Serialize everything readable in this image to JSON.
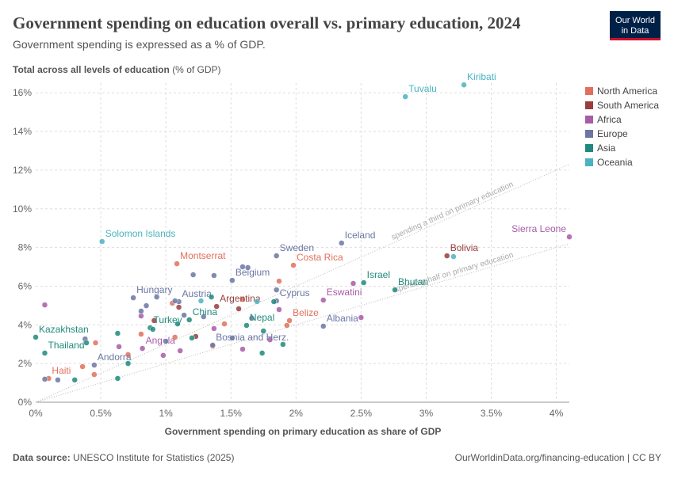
{
  "chart_data": {
    "type": "scatter",
    "title": "Government spending on education overall vs. primary education, 2024",
    "subtitle": "Government spending is expressed as a % of GDP.",
    "y_label": "Total across all levels of education",
    "y_label_unit": "(% of GDP)",
    "x_label": "Government spending on primary education as share of GDP",
    "source_label": "Data source:",
    "source": "UNESCO Institute for Statistics (2025)",
    "url": "OurWorldinData.org/financing-education | CC BY",
    "logo": [
      "Our World",
      "in Data"
    ],
    "xlim": [
      0,
      4.1
    ],
    "xticks": [
      {
        "value": 0,
        "label": "0%"
      },
      {
        "value": 0.5,
        "label": "0.5%"
      },
      {
        "value": 1,
        "label": "1%"
      },
      {
        "value": 1.5,
        "label": "1.5%"
      },
      {
        "value": 2,
        "label": "2%"
      },
      {
        "value": 2.5,
        "label": "2.5%"
      },
      {
        "value": 3,
        "label": "3%"
      },
      {
        "value": 3.5,
        "label": "3.5%"
      },
      {
        "value": 4,
        "label": "4%"
      }
    ],
    "ylim": [
      0,
      16.5
    ],
    "yticks": [
      {
        "value": 0,
        "label": "0%"
      },
      {
        "value": 2,
        "label": "2%"
      },
      {
        "value": 4,
        "label": "4%"
      },
      {
        "value": 6,
        "label": "6%"
      },
      {
        "value": 8,
        "label": "8%"
      },
      {
        "value": 10,
        "label": "10%"
      },
      {
        "value": 12,
        "label": "12%"
      },
      {
        "value": 14,
        "label": "14%"
      },
      {
        "value": 16,
        "label": "16%"
      }
    ],
    "grid": true,
    "legend": "right",
    "reference_lines": [
      {
        "label": "spending a third on primary education",
        "slope": 3
      },
      {
        "label": "spending half on primary education",
        "slope": 2
      }
    ],
    "series": [
      {
        "name": "North America",
        "color": "#e0705c",
        "x": [
          1.085,
          1.98,
          1.95,
          0.1,
          0.45,
          0.36,
          0.46,
          1.05,
          1.45,
          1.87,
          1.93,
          1.36,
          1.07,
          0.71,
          0.81,
          1.59
        ],
        "values": [
          7.16,
          7.08,
          4.22,
          1.23,
          1.43,
          1.84,
          3.07,
          5.12,
          4.05,
          6.26,
          3.97,
          2.9,
          3.36,
          2.46,
          3.52,
          5.32
        ],
        "labels": [
          "Montserrat",
          "Costa Rica",
          "Belize",
          "Haiti",
          null,
          null,
          null,
          null,
          null,
          null,
          null,
          null,
          null,
          null,
          null,
          null
        ]
      },
      {
        "name": "South America",
        "color": "#993d3d",
        "x": [
          3.16,
          1.39,
          1.56,
          1.1,
          1.23,
          0.91
        ],
        "values": [
          7.57,
          4.95,
          4.83,
          4.91,
          3.4,
          4.22
        ],
        "labels": [
          "Bolivia",
          "Argentina",
          null,
          null,
          null,
          null
        ]
      },
      {
        "name": "Africa",
        "color": "#a85ba8",
        "x": [
          4.1,
          2.21,
          0.82,
          0.07,
          2.44,
          2.5,
          1.59,
          1.87,
          0.98,
          0.64,
          1.37,
          0.81,
          1.11,
          1.8
        ],
        "values": [
          8.55,
          5.28,
          2.78,
          5.03,
          6.14,
          4.38,
          2.74,
          4.79,
          2.42,
          2.87,
          3.81,
          4.46,
          2.66,
          3.23
        ],
        "labels": [
          "Sierra Leone",
          "Eswatini",
          "Angola",
          null,
          null,
          null,
          null,
          null,
          null,
          null,
          null,
          null,
          null,
          null
        ]
      },
      {
        "name": "Europe",
        "color": "#6b76a3",
        "x": [
          1.85,
          2.35,
          1.51,
          1.1,
          0.75,
          1.85,
          2.21,
          1.36,
          0.45,
          1.59,
          1.63,
          1.37,
          1.21,
          1.85,
          0.93,
          1.07,
          0.81,
          0.38,
          0.17,
          0.07,
          1.0,
          1.29,
          1.51,
          1.66,
          1.14,
          0.85
        ],
        "values": [
          7.57,
          8.23,
          6.3,
          5.2,
          5.4,
          5.24,
          3.93,
          2.95,
          1.92,
          7.0,
          6.96,
          6.55,
          6.59,
          5.81,
          5.44,
          5.24,
          4.71,
          3.27,
          1.15,
          1.19,
          3.15,
          4.42,
          3.32,
          4.34,
          4.5,
          4.99
        ],
        "labels": [
          "Sweden",
          "Iceland",
          "Belgium",
          "Austria",
          "Hungary",
          "Cyprus",
          "Albania",
          "Bosnia and Herz.",
          "Andorra",
          null,
          null,
          null,
          null,
          null,
          null,
          null,
          null,
          null,
          null,
          null,
          null,
          null,
          null,
          null,
          null,
          null
        ]
      },
      {
        "name": "Asia",
        "color": "#1f8a7b",
        "x": [
          0.0,
          0.07,
          0.88,
          1.18,
          1.62,
          2.52,
          2.76,
          0.3,
          0.63,
          0.39,
          0.71,
          0.63,
          1.2,
          1.9,
          1.75,
          1.35,
          1.83,
          1.09,
          1.74,
          0.9
        ],
        "values": [
          3.36,
          2.54,
          3.85,
          4.26,
          3.97,
          6.18,
          5.81,
          1.15,
          1.23,
          3.07,
          2.0,
          3.56,
          3.32,
          2.99,
          3.68,
          5.44,
          5.2,
          4.05,
          2.54,
          3.77
        ],
        "labels": [
          "Kazakhstan",
          "Thailand",
          "Turkey",
          "China",
          "Nepal",
          "Israel",
          "Bhutan",
          null,
          null,
          null,
          null,
          null,
          null,
          null,
          null,
          null,
          null,
          null,
          null,
          null
        ]
      },
      {
        "name": "Oceania",
        "color": "#4ab3c1",
        "x": [
          2.84,
          3.29,
          0.51,
          3.21,
          1.7,
          1.27
        ],
        "values": [
          15.8,
          16.41,
          8.31,
          7.53,
          5.2,
          5.24
        ],
        "labels": [
          "Tuvalu",
          "Kiribati",
          "Solomon Islands",
          null,
          null,
          null
        ]
      }
    ]
  }
}
